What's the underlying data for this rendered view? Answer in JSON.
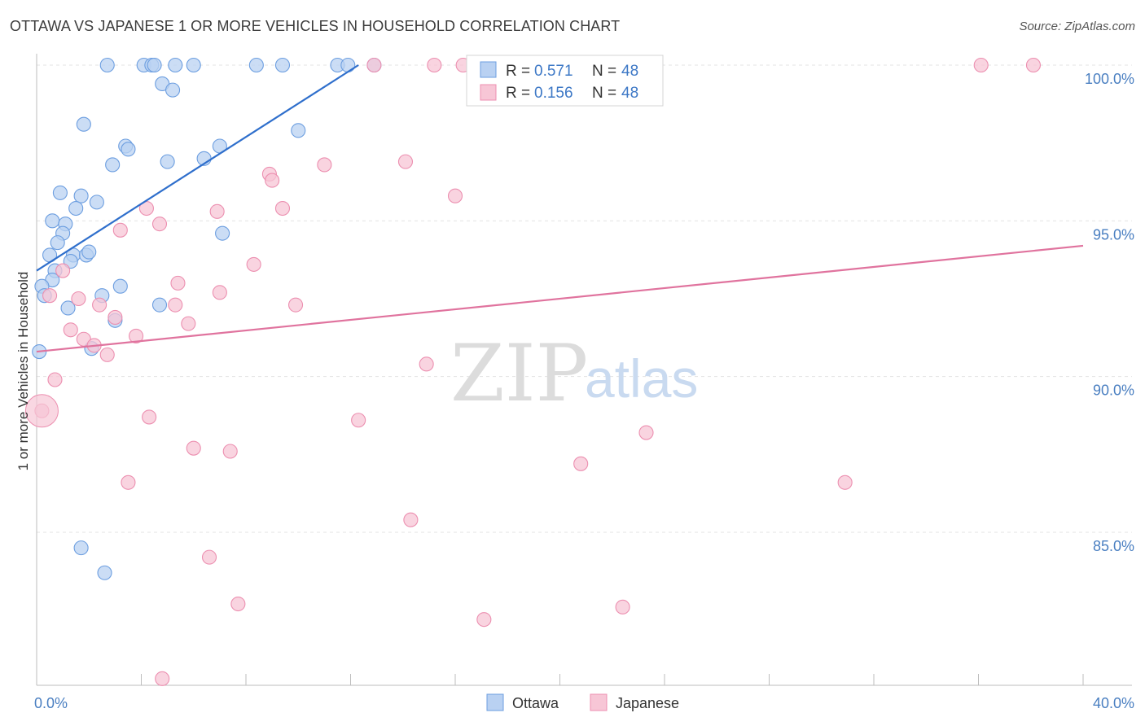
{
  "header": {
    "title": "OTTAWA VS JAPANESE 1 OR MORE VEHICLES IN HOUSEHOLD CORRELATION CHART",
    "source": "Source: ZipAtlas.com"
  },
  "watermark": {
    "zip": "ZIP",
    "atlas": "atlas"
  },
  "legend": {
    "rows": [
      {
        "r_label": "R = ",
        "r_value": "0.571",
        "n_label": "N = ",
        "n_value": "48"
      },
      {
        "r_label": "R = ",
        "r_value": "0.156",
        "n_label": "N = ",
        "n_value": "48"
      }
    ]
  },
  "chart_data": {
    "type": "scatter",
    "title": "OTTAWA VS JAPANESE 1 OR MORE VEHICLES IN HOUSEHOLD CORRELATION CHART",
    "xlabel": "",
    "ylabel": "1 or more Vehicles in Household",
    "xlim": [
      0,
      40
    ],
    "ylim": [
      80,
      100.3
    ],
    "x_tick_labels": [
      {
        "value": 0,
        "label": "0.0%"
      },
      {
        "value": 40,
        "label": "40.0%"
      }
    ],
    "y_tick_labels": [
      {
        "value": 100,
        "label": "100.0%"
      },
      {
        "value": 95,
        "label": "95.0%"
      },
      {
        "value": 90,
        "label": "90.0%"
      },
      {
        "value": 85,
        "label": "85.0%"
      }
    ],
    "legend_position": "top-center",
    "series": [
      {
        "name": "Ottawa",
        "color": "#6c9ee0",
        "fill": "#b9d1f2",
        "line_color": "#2f6fcc",
        "r": 0.571,
        "n": 48,
        "trend": [
          [
            0,
            93.4
          ],
          [
            12.3,
            100.0
          ]
        ],
        "points": [
          [
            2.7,
            100
          ],
          [
            4.1,
            100
          ],
          [
            4.4,
            100
          ],
          [
            4.5,
            100
          ],
          [
            5.3,
            100
          ],
          [
            6.0,
            100
          ],
          [
            8.4,
            100
          ],
          [
            9.4,
            100
          ],
          [
            11.5,
            100
          ],
          [
            11.9,
            100
          ],
          [
            12.9,
            100
          ],
          [
            4.8,
            99.4
          ],
          [
            5.2,
            99.2
          ],
          [
            1.8,
            98.1
          ],
          [
            10.0,
            97.9
          ],
          [
            3.4,
            97.4
          ],
          [
            3.5,
            97.3
          ],
          [
            7.0,
            97.4
          ],
          [
            6.4,
            97.0
          ],
          [
            5.0,
            96.9
          ],
          [
            2.9,
            96.8
          ],
          [
            0.9,
            95.9
          ],
          [
            1.7,
            95.8
          ],
          [
            2.3,
            95.6
          ],
          [
            1.5,
            95.4
          ],
          [
            0.6,
            95.0
          ],
          [
            1.1,
            94.9
          ],
          [
            7.1,
            94.6
          ],
          [
            1.0,
            94.6
          ],
          [
            0.8,
            94.3
          ],
          [
            0.5,
            93.9
          ],
          [
            1.4,
            93.9
          ],
          [
            1.9,
            93.9
          ],
          [
            2.0,
            94.0
          ],
          [
            1.3,
            93.7
          ],
          [
            0.7,
            93.4
          ],
          [
            0.6,
            93.1
          ],
          [
            3.2,
            92.9
          ],
          [
            0.2,
            92.9
          ],
          [
            0.3,
            92.6
          ],
          [
            2.5,
            92.6
          ],
          [
            4.7,
            92.3
          ],
          [
            1.2,
            92.2
          ],
          [
            3.0,
            91.8
          ],
          [
            2.1,
            90.9
          ],
          [
            0.1,
            90.8
          ],
          [
            1.7,
            84.5
          ],
          [
            2.6,
            83.7
          ]
        ]
      },
      {
        "name": "Japanese",
        "color": "#ec8fb0",
        "fill": "#f7c6d6",
        "line_color": "#e0739e",
        "r": 0.156,
        "n": 48,
        "trend": [
          [
            0,
            90.8
          ],
          [
            40,
            94.2
          ]
        ],
        "points": [
          [
            12.9,
            100
          ],
          [
            15.2,
            100
          ],
          [
            16.3,
            100
          ],
          [
            36.1,
            100
          ],
          [
            38.1,
            100
          ],
          [
            14.1,
            96.9
          ],
          [
            11.0,
            96.8
          ],
          [
            8.9,
            96.5
          ],
          [
            9.0,
            96.3
          ],
          [
            16.0,
            95.8
          ],
          [
            4.2,
            95.4
          ],
          [
            9.4,
            95.4
          ],
          [
            6.9,
            95.3
          ],
          [
            4.7,
            94.9
          ],
          [
            3.2,
            94.7
          ],
          [
            8.3,
            93.6
          ],
          [
            1.0,
            93.4
          ],
          [
            5.4,
            93.0
          ],
          [
            7.0,
            92.7
          ],
          [
            0.5,
            92.6
          ],
          [
            1.6,
            92.5
          ],
          [
            9.9,
            92.3
          ],
          [
            2.4,
            92.3
          ],
          [
            5.3,
            92.3
          ],
          [
            3.0,
            91.9
          ],
          [
            5.8,
            91.7
          ],
          [
            1.3,
            91.5
          ],
          [
            3.8,
            91.3
          ],
          [
            1.8,
            91.2
          ],
          [
            2.2,
            91.0
          ],
          [
            2.7,
            90.7
          ],
          [
            14.9,
            90.4
          ],
          [
            0.7,
            89.9
          ],
          [
            0.2,
            88.9
          ],
          [
            4.3,
            88.7
          ],
          [
            12.3,
            88.6
          ],
          [
            23.3,
            88.2
          ],
          [
            6.0,
            87.7
          ],
          [
            7.4,
            87.6
          ],
          [
            20.8,
            87.2
          ],
          [
            3.5,
            86.6
          ],
          [
            30.9,
            86.6
          ],
          [
            14.3,
            85.4
          ],
          [
            6.6,
            84.2
          ],
          [
            7.7,
            82.7
          ],
          [
            22.4,
            82.6
          ],
          [
            17.1,
            82.2
          ],
          [
            4.8,
            80.3
          ]
        ]
      }
    ]
  }
}
